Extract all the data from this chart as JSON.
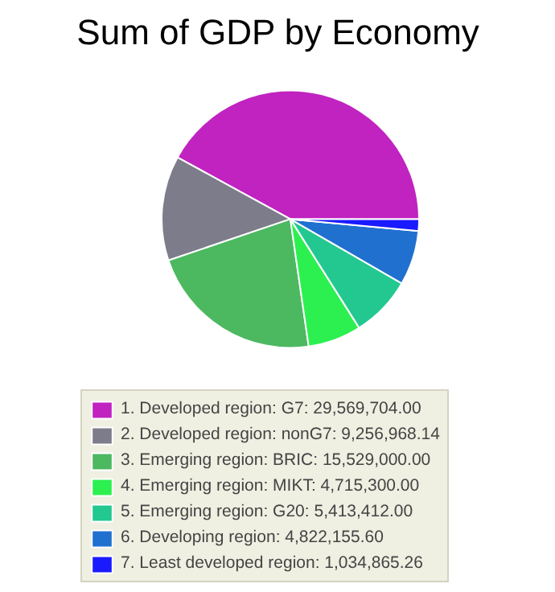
{
  "chart_data": {
    "type": "pie",
    "title": "Sum of GDP by Economy",
    "categories": [
      "1. Developed region: G7: 29,569,704.00",
      "2. Developed region: nonG7: 9,256,968.14",
      "3. Emerging region: BRIC: 15,529,000.00",
      "4. Emerging region: MIKT: 4,715,300.00",
      "5. Emerging region: G20: 5,413,412.00",
      "6. Developing region: 4,822,155.60",
      "7. Least developed region: 1,034,865.26"
    ],
    "values": [
      29569704.0,
      9256968.14,
      15529000.0,
      4715300.0,
      5413412.0,
      4822155.6,
      1034865.26
    ],
    "colors": [
      "#c023c0",
      "#7c7c8a",
      "#4cb860",
      "#2cf050",
      "#22c890",
      "#2070d0",
      "#1a1aff"
    ],
    "legend": "bottom"
  }
}
